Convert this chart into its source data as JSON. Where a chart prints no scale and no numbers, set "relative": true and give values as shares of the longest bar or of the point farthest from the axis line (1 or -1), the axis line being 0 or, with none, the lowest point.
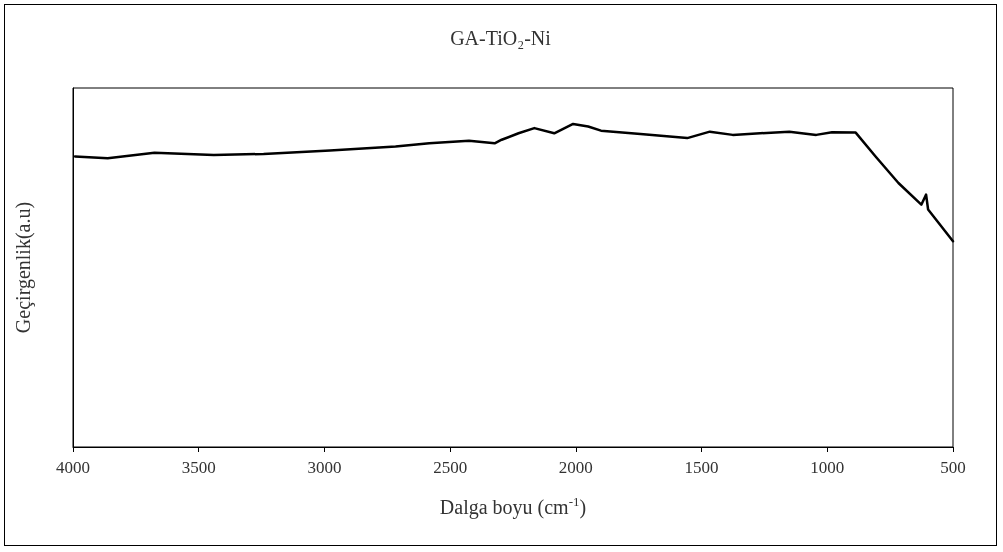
{
  "chart_data": {
    "type": "line",
    "title": "GA-TiO₂-Ni",
    "xlabel": "Dalga boyu (cm$^{-1}$)",
    "ylabel": "Geçirgenlik(a.u)",
    "relative": true,
    "xlim": [
      4000,
      500
    ],
    "xticks": [
      4000,
      3500,
      3000,
      2500,
      2000,
      1500,
      1000,
      500
    ],
    "grid": false,
    "marker": "none",
    "line_style": "solid",
    "series": [
      {
        "color": "#000000",
        "x": [
          3992,
          3862,
          3676,
          3440,
          3242,
          2978,
          2717,
          2583,
          2425,
          2323,
          2295,
          2228,
          2165,
          2086,
          2011,
          1951,
          1900,
          1743,
          1557,
          1467,
          1376,
          1151,
          1044,
          981,
          887,
          808,
          717,
          626,
          607,
          599,
          500
        ],
        "values": [
          0.899,
          0.894,
          0.911,
          0.904,
          0.907,
          0.918,
          0.93,
          0.94,
          0.948,
          0.94,
          0.951,
          0.971,
          0.987,
          0.971,
          1.0,
          0.992,
          0.979,
          0.969,
          0.956,
          0.976,
          0.966,
          0.976,
          0.966,
          0.974,
          0.973,
          0.899,
          0.817,
          0.75,
          0.781,
          0.735,
          0.637
        ]
      }
    ]
  }
}
